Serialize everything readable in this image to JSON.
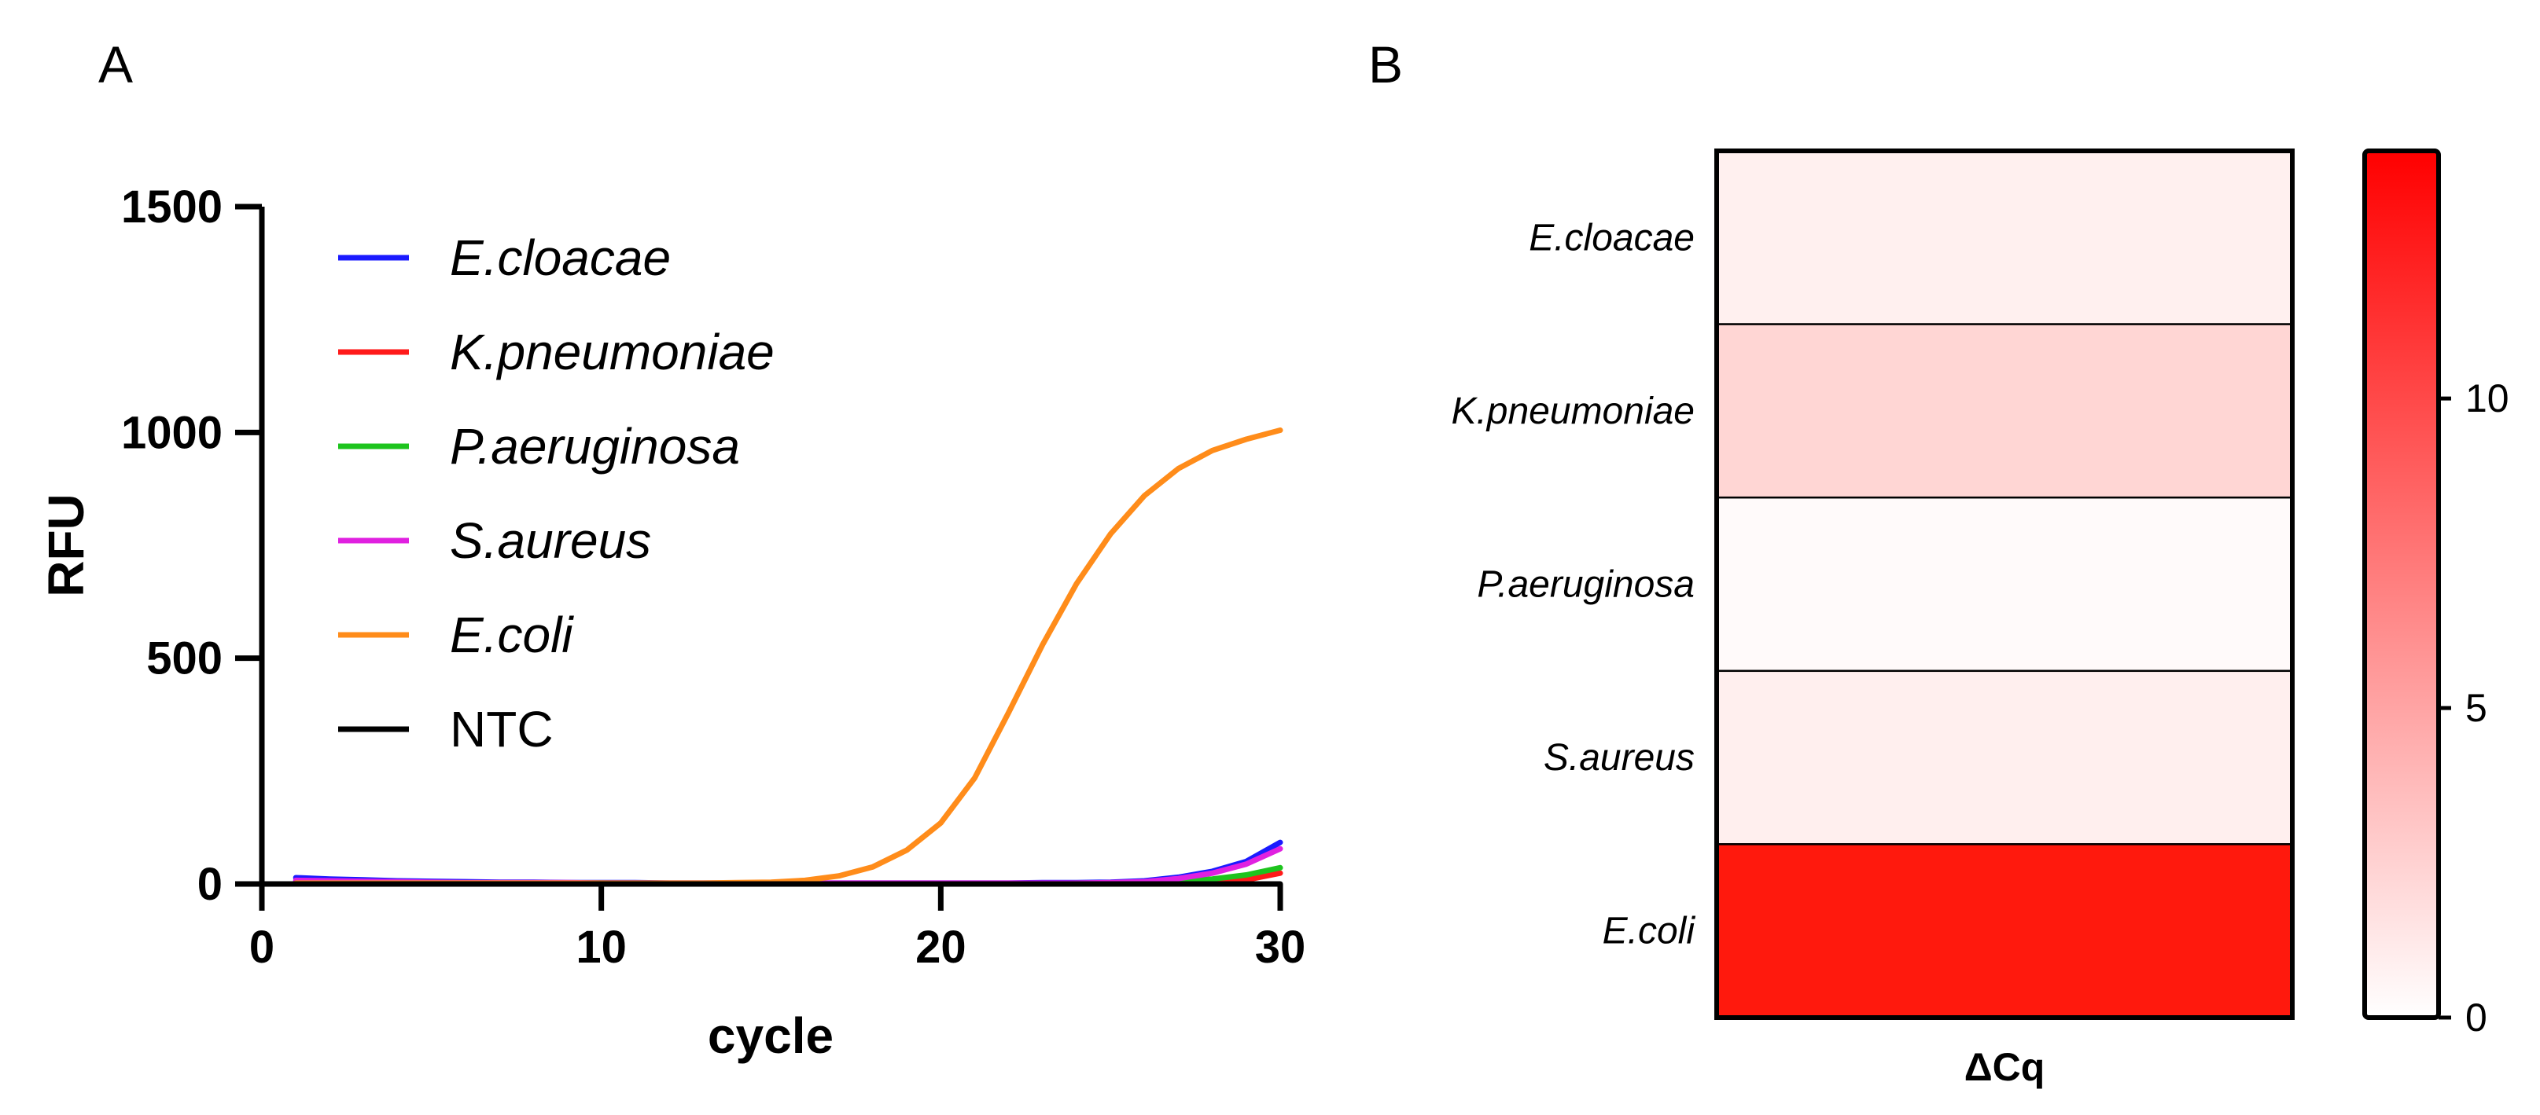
{
  "figure": {
    "panel_a_label": "A",
    "panel_b_label": "B"
  },
  "chart_data": [
    {
      "type": "line",
      "panel": "A",
      "title": "",
      "xlabel": "cycle",
      "ylabel": "RFU",
      "xlim": [
        0,
        30
      ],
      "ylim": [
        0,
        1500
      ],
      "xticks": [
        "0",
        "10",
        "20",
        "30"
      ],
      "yticks": [
        "0",
        "500",
        "1000",
        "1500"
      ],
      "legend_position": "top-left",
      "x": [
        1,
        2,
        3,
        4,
        5,
        6,
        7,
        8,
        9,
        10,
        11,
        12,
        13,
        14,
        15,
        16,
        17,
        18,
        19,
        20,
        21,
        22,
        23,
        24,
        25,
        26,
        27,
        28,
        29,
        30
      ],
      "series": [
        {
          "name": "E.cloacae",
          "color": "#1a1aff",
          "italic": true,
          "values": [
            14,
            11,
            9,
            7,
            6,
            5,
            4,
            4,
            3,
            3,
            3,
            2,
            2,
            2,
            2,
            2,
            2,
            2,
            2,
            2,
            2,
            2,
            3,
            3,
            4,
            7,
            15,
            28,
            50,
            92
          ]
        },
        {
          "name": "K.pneumoniae",
          "color": "#ff1a1a",
          "italic": true,
          "values": [
            2,
            1,
            1,
            0,
            0,
            0,
            0,
            0,
            0,
            0,
            0,
            0,
            0,
            0,
            0,
            0,
            0,
            0,
            0,
            0,
            0,
            0,
            0,
            0,
            0,
            1,
            2,
            4,
            9,
            24
          ]
        },
        {
          "name": "P.aeruginosa",
          "color": "#1dc41d",
          "italic": true,
          "values": [
            6,
            5,
            4,
            3,
            3,
            2,
            2,
            2,
            2,
            2,
            1,
            1,
            1,
            1,
            1,
            1,
            1,
            1,
            1,
            1,
            1,
            1,
            1,
            2,
            2,
            3,
            6,
            11,
            20,
            36
          ]
        },
        {
          "name": "S.aureus",
          "color": "#e020e0",
          "italic": true,
          "values": [
            8,
            7,
            6,
            5,
            4,
            3,
            3,
            3,
            3,
            2,
            2,
            2,
            2,
            2,
            2,
            2,
            2,
            2,
            2,
            2,
            2,
            2,
            2,
            2,
            3,
            5,
            12,
            24,
            44,
            78
          ]
        },
        {
          "name": "E.coli",
          "color": "#ff8c1a",
          "italic": true,
          "values": [
            2,
            2,
            2,
            2,
            2,
            2,
            2,
            2,
            2,
            2,
            2,
            2,
            2,
            3,
            4,
            8,
            18,
            38,
            75,
            135,
            235,
            380,
            530,
            665,
            775,
            860,
            920,
            960,
            985,
            1005
          ]
        },
        {
          "name": "NTC",
          "color": "#000000",
          "italic": false,
          "values": [
            0,
            0,
            0,
            0,
            0,
            0,
            0,
            0,
            0,
            0,
            0,
            0,
            0,
            0,
            0,
            0,
            0,
            0,
            0,
            0,
            0,
            0,
            0,
            0,
            0,
            0,
            0,
            0,
            0,
            0
          ]
        }
      ]
    },
    {
      "type": "heatmap",
      "panel": "B",
      "title": "",
      "xlabel": "ΔCq",
      "rows": [
        "E.cloacae",
        "K.pneumoniae",
        "P.aeruginosa",
        "S.aureus",
        "E.coli"
      ],
      "values": [
        0.9,
        2.5,
        0.3,
        1.0,
        14.0
      ],
      "colorbar_range": [
        0,
        14
      ],
      "colorbar_ticks": [
        "0",
        "5",
        "10"
      ],
      "colorbar_tick_values": [
        0,
        5,
        10
      ],
      "color_low": "#ffffff",
      "color_high": "#ff0000"
    }
  ]
}
